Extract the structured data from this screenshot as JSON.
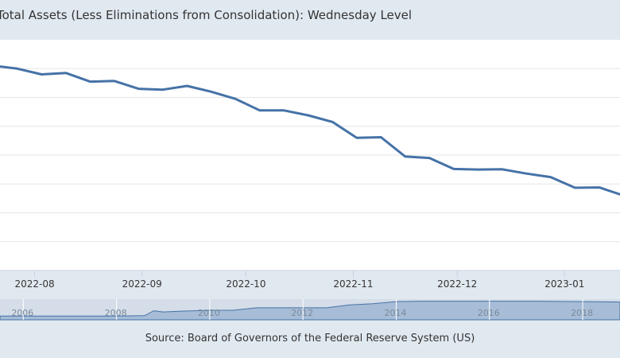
{
  "title": "Total Assets (Less Eliminations from Consolidation): Wednesday Level",
  "source": "Source: Board of Governors of the Federal Reserve System (US)",
  "colors": {
    "line": "#4572a7",
    "grid": "#e6e6e6",
    "navigator_fill": "#9fb6d2"
  },
  "chart_data": {
    "type": "line",
    "title": "Total Assets (Less Eliminations from Consolidation): Wednesday Level",
    "x_ticks": [
      "2022-08",
      "2022-09",
      "2022-10",
      "2022-11",
      "2022-12",
      "2023-01"
    ],
    "xlim": [
      "2022-07-22",
      "2023-01-17"
    ],
    "ylim": [
      0,
      8
    ],
    "grid": true,
    "series": [
      {
        "x": [
          "2022-07-20",
          "2022-07-27",
          "2022-08-03",
          "2022-08-10",
          "2022-08-17",
          "2022-08-24",
          "2022-08-31",
          "2022-09-07",
          "2022-09-14",
          "2022-09-21",
          "2022-09-28",
          "2022-10-05",
          "2022-10-12",
          "2022-10-19",
          "2022-10-26",
          "2022-11-02",
          "2022-11-09",
          "2022-11-16",
          "2022-11-23",
          "2022-11-30",
          "2022-12-07",
          "2022-12-14",
          "2022-12-21",
          "2022-12-28",
          "2023-01-04",
          "2023-01-11",
          "2023-01-18"
        ],
        "values": [
          7.1,
          7.0,
          6.8,
          6.85,
          6.55,
          6.57,
          6.3,
          6.27,
          6.4,
          6.2,
          5.95,
          5.55,
          5.55,
          5.38,
          5.15,
          4.6,
          4.62,
          3.95,
          3.9,
          3.52,
          3.5,
          3.51,
          3.36,
          3.24,
          2.87,
          2.88,
          2.6
        ]
      }
    ]
  },
  "navigator": {
    "labels": [
      "2006",
      "2008",
      "2010",
      "2012",
      "2014",
      "2016",
      "2018"
    ],
    "x_range": [
      2005.5,
      2018.8
    ],
    "series": {
      "x": [
        2005.5,
        2008.0,
        2008.6,
        2008.8,
        2009.0,
        2009.4,
        2010.0,
        2010.5,
        2011.0,
        2011.5,
        2012.0,
        2012.5,
        2013.0,
        2013.5,
        2014.0,
        2014.5,
        2015.0,
        2016.0,
        2017.0,
        2018.0,
        2018.8
      ],
      "values": [
        0.9,
        0.9,
        1.0,
        2.2,
        1.9,
        2.1,
        2.3,
        2.3,
        2.9,
        2.9,
        2.9,
        2.9,
        3.6,
        3.9,
        4.4,
        4.5,
        4.5,
        4.5,
        4.5,
        4.4,
        4.3
      ]
    },
    "ylim": [
      0,
      5
    ]
  }
}
